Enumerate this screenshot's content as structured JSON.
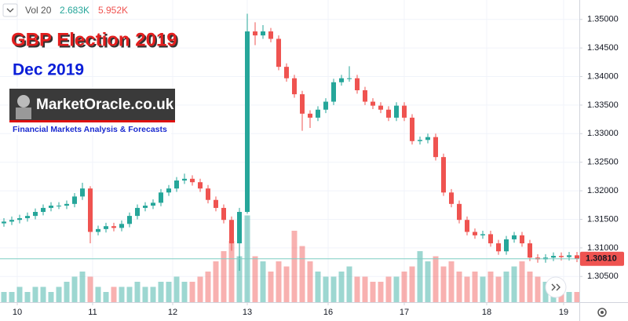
{
  "chart_data": {
    "type": "candlestick",
    "title": "GBP Election 2019",
    "subtitle": "Dec 2019",
    "logo": {
      "name": "MarketOracle.co.uk",
      "tagline": "Financial Markets Analysis & Forecasts"
    },
    "volume_legend": {
      "label": "Vol 20",
      "readouts": [
        "2.683K",
        "5.952K"
      ]
    },
    "up_color": "#26a69a",
    "down_color": "#ef5350",
    "grid": true,
    "x": [
      0,
      1,
      2,
      3,
      4,
      5,
      6,
      7,
      8,
      9,
      10,
      11,
      12,
      13,
      14,
      15,
      16,
      17,
      18,
      19,
      20,
      21,
      22,
      23,
      24,
      25,
      26,
      27,
      28,
      29,
      30,
      31,
      32,
      33,
      34,
      35,
      36,
      37,
      38,
      39,
      40,
      41,
      42,
      43,
      44,
      45,
      46,
      47,
      48,
      49,
      50,
      51,
      52,
      53,
      54,
      55,
      56,
      57,
      58,
      59,
      60,
      61,
      62,
      63,
      64,
      65,
      66,
      67,
      68,
      69,
      70,
      71,
      72,
      73
    ],
    "xlim": [
      -0.5,
      73.3
    ],
    "xticks": [
      {
        "value": 1.7,
        "label": "10"
      },
      {
        "value": 11.3,
        "label": "11"
      },
      {
        "value": 21.5,
        "label": "12"
      },
      {
        "value": 31.0,
        "label": "13"
      },
      {
        "value": 41.3,
        "label": "16"
      },
      {
        "value": 51.0,
        "label": "17"
      },
      {
        "value": 61.5,
        "label": "18"
      },
      {
        "value": 71.3,
        "label": "19"
      }
    ],
    "open": [
      1.3143,
      1.3146,
      1.3149,
      1.3152,
      1.3156,
      1.3163,
      1.317,
      1.3174,
      1.3174,
      1.3177,
      1.319,
      1.3204,
      1.3128,
      1.3133,
      1.3138,
      1.3135,
      1.3142,
      1.3156,
      1.317,
      1.3174,
      1.3179,
      1.3197,
      1.3204,
      1.3218,
      1.3221,
      1.3215,
      1.3204,
      1.3184,
      1.317,
      1.3149,
      1.3108,
      1.3163,
      1.3479,
      1.3472,
      1.3479,
      1.3466,
      1.3417,
      1.3397,
      1.3369,
      1.3335,
      1.3328,
      1.3342,
      1.3356,
      1.339,
      1.3397,
      1.3397,
      1.3376,
      1.3356,
      1.3349,
      1.3342,
      1.3328,
      1.3349,
      1.3328,
      1.3287,
      1.3289,
      1.3294,
      1.3259,
      1.3197,
      1.3177,
      1.3149,
      1.3128,
      1.3122,
      1.3124,
      1.3108,
      1.3094,
      1.3115,
      1.3122,
      1.3108,
      1.3083,
      1.308,
      1.3083,
      1.3086,
      1.3084,
      1.3087
    ],
    "high": [
      1.3152,
      1.3155,
      1.3158,
      1.3162,
      1.3169,
      1.3176,
      1.318,
      1.318,
      1.3183,
      1.3196,
      1.3214,
      1.3208,
      1.3139,
      1.3144,
      1.3144,
      1.3148,
      1.3162,
      1.3176,
      1.318,
      1.3185,
      1.3203,
      1.321,
      1.3224,
      1.323,
      1.3227,
      1.3221,
      1.321,
      1.319,
      1.3176,
      1.3155,
      1.317,
      1.351,
      1.3495,
      1.349,
      1.3485,
      1.3472,
      1.3423,
      1.3403,
      1.3375,
      1.3341,
      1.3348,
      1.3362,
      1.3396,
      1.3403,
      1.3418,
      1.3403,
      1.3382,
      1.3362,
      1.3355,
      1.3348,
      1.3355,
      1.3355,
      1.3334,
      1.3295,
      1.33,
      1.33,
      1.3265,
      1.3203,
      1.3183,
      1.3155,
      1.3134,
      1.313,
      1.313,
      1.3114,
      1.3121,
      1.3128,
      1.3128,
      1.3114,
      1.3089,
      1.3089,
      1.3092,
      1.3092,
      1.3093,
      1.3093
    ],
    "low": [
      1.3137,
      1.314,
      1.3143,
      1.3146,
      1.315,
      1.3157,
      1.3164,
      1.3168,
      1.3168,
      1.3171,
      1.3184,
      1.3108,
      1.3122,
      1.3127,
      1.3129,
      1.3129,
      1.3136,
      1.315,
      1.3164,
      1.3168,
      1.3173,
      1.3191,
      1.3198,
      1.3212,
      1.3209,
      1.3198,
      1.3178,
      1.3164,
      1.3143,
      1.3095,
      1.306,
      1.316,
      1.3455,
      1.3466,
      1.346,
      1.3411,
      1.3391,
      1.3363,
      1.3305,
      1.331,
      1.3322,
      1.3336,
      1.335,
      1.3384,
      1.3391,
      1.337,
      1.335,
      1.3343,
      1.3336,
      1.3322,
      1.3322,
      1.3322,
      1.3281,
      1.3281,
      1.3283,
      1.3253,
      1.3191,
      1.3171,
      1.3143,
      1.3122,
      1.3116,
      1.3116,
      1.3102,
      1.3088,
      1.3088,
      1.3109,
      1.3102,
      1.3077,
      1.3074,
      1.3074,
      1.3077,
      1.3078,
      1.3078,
      1.3075
    ],
    "close": [
      1.3146,
      1.3149,
      1.3152,
      1.3156,
      1.3163,
      1.317,
      1.3174,
      1.3174,
      1.3177,
      1.319,
      1.3204,
      1.3128,
      1.3133,
      1.3138,
      1.3135,
      1.3142,
      1.3156,
      1.317,
      1.3174,
      1.3179,
      1.3197,
      1.3204,
      1.3218,
      1.3221,
      1.3215,
      1.3204,
      1.3184,
      1.317,
      1.3149,
      1.3108,
      1.3163,
      1.3479,
      1.3472,
      1.3479,
      1.3466,
      1.3417,
      1.3397,
      1.3369,
      1.3335,
      1.3328,
      1.3342,
      1.3356,
      1.339,
      1.3397,
      1.3397,
      1.3376,
      1.3356,
      1.3349,
      1.3342,
      1.3328,
      1.3349,
      1.3328,
      1.3287,
      1.3289,
      1.3294,
      1.3259,
      1.3197,
      1.3177,
      1.3149,
      1.3128,
      1.3122,
      1.3124,
      1.3108,
      1.3094,
      1.3115,
      1.3122,
      1.3108,
      1.3083,
      1.308,
      1.3083,
      1.3086,
      1.3084,
      1.3087,
      1.3081
    ],
    "volume": [
      2,
      2,
      3,
      2,
      3,
      3,
      2,
      3,
      4,
      5,
      6,
      5,
      3,
      2,
      3,
      3,
      3,
      4,
      3,
      3,
      4,
      4,
      5,
      4,
      4,
      5,
      6,
      8,
      10,
      12,
      9,
      17,
      9,
      8,
      6,
      8,
      7,
      14,
      11,
      8,
      6,
      5,
      5,
      6,
      7,
      5,
      5,
      4,
      4,
      5,
      5,
      6,
      7,
      10,
      8,
      9,
      7,
      8,
      6,
      5,
      6,
      5,
      6,
      5,
      6,
      7,
      8,
      6,
      5,
      4,
      3,
      3,
      2,
      2
    ],
    "vlim": [
      0,
      20
    ],
    "ylim": [
      1.3005,
      1.3534
    ],
    "yticks": [
      {
        "value": 1.305,
        "label": "1.30500"
      },
      {
        "value": 1.31,
        "label": "1.31000"
      },
      {
        "value": 1.315,
        "label": "1.31500"
      },
      {
        "value": 1.32,
        "label": "1.32000"
      },
      {
        "value": 1.325,
        "label": "1.32500"
      },
      {
        "value": 1.33,
        "label": "1.33000"
      },
      {
        "value": 1.335,
        "label": "1.33500"
      },
      {
        "value": 1.34,
        "label": "1.34000"
      },
      {
        "value": 1.345,
        "label": "1.34500"
      },
      {
        "value": 1.35,
        "label": "1.35000"
      }
    ],
    "last_price": {
      "value": 1.3081,
      "label": "1.30810"
    }
  }
}
